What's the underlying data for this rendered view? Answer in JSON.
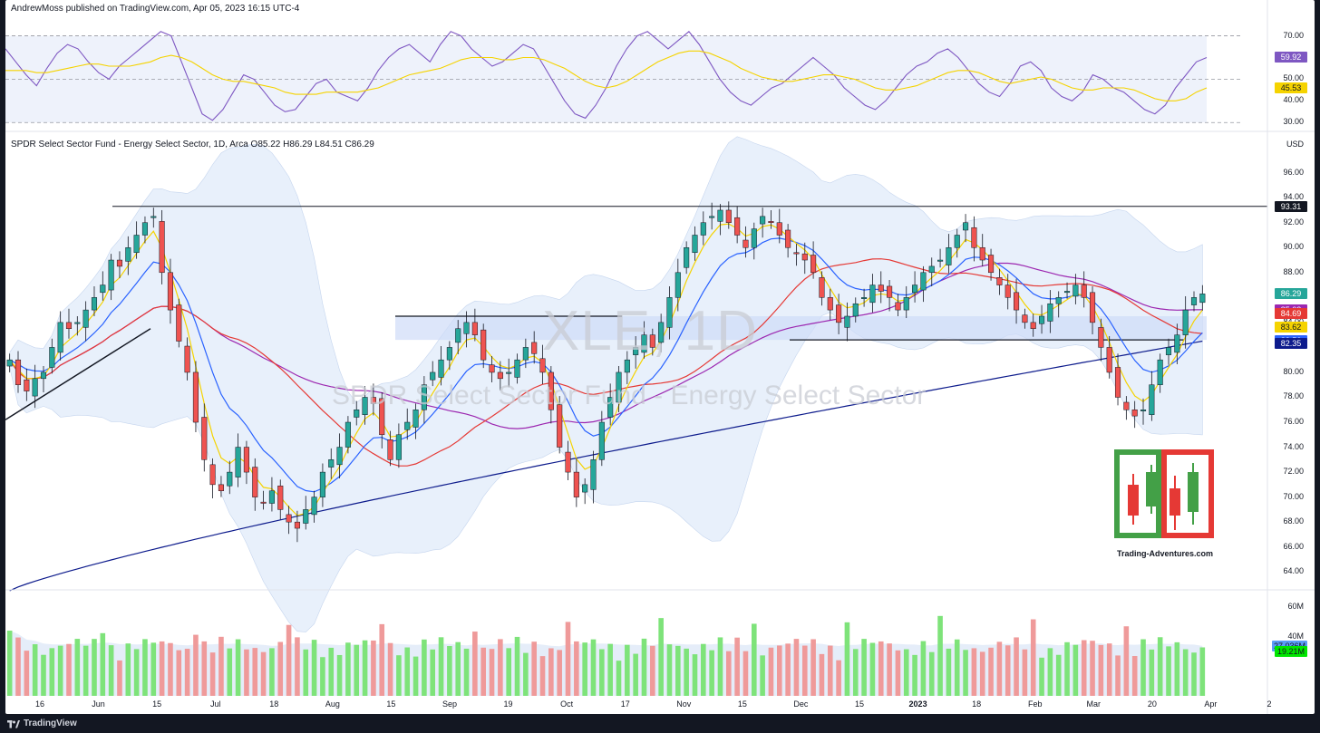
{
  "header": {
    "publish_line": "AndrewMoss published on TradingView.com, Apr 05, 2023 16:15 UTC-4",
    "symbol_line": "SPDR Select Sector Fund - Energy Select Sector, 1D, Arca  O85.22  H86.29  L84.51  C86.29",
    "currency": "USD"
  },
  "watermark": {
    "symbol": "XLE, 1D",
    "name": "SPDR Select Sector Fund - Energy Select Sector"
  },
  "brand": {
    "site": "Trading-Adventures.com"
  },
  "footer": {
    "platform": "TradingView"
  },
  "colors": {
    "up": "#26a69a",
    "down": "#ef5350",
    "up_volume": "#7ee37a",
    "down_volume": "#ef9a9a",
    "ma_yellow": "#f5d300",
    "ma_blue": "#2962ff",
    "ma_red": "#e53935",
    "ma_purple": "#9c27b0",
    "ma_navy": "#0d1b8c",
    "rsi": "#7e57c2",
    "rsi_ma": "#f5d300",
    "band_fill": "#e8f0fb",
    "zone_fill": "#cfdcf8"
  },
  "chart_data": [
    {
      "type": "line",
      "panel": "RSI",
      "y_ticks": [
        "70.00",
        "50.00",
        "40.00",
        "30.00"
      ],
      "ylim": [
        28,
        74
      ],
      "last_values": {
        "rsi": "59.92",
        "rsi_ma": "45.53"
      },
      "series": [
        {
          "values": [
            64,
            58,
            52,
            47,
            55,
            62,
            66,
            64,
            58,
            53,
            50,
            56,
            60,
            64,
            68,
            72,
            70,
            58,
            46,
            34,
            31,
            36,
            44,
            52,
            50,
            44,
            38,
            35,
            36,
            42,
            48,
            50,
            44,
            42,
            40,
            46,
            54,
            60,
            64,
            66,
            62,
            58,
            66,
            72,
            70,
            64,
            60,
            56,
            58,
            62,
            66,
            64,
            56,
            48,
            40,
            34,
            32,
            38,
            46,
            56,
            64,
            70,
            72,
            68,
            64,
            68,
            72,
            66,
            58,
            50,
            44,
            40,
            38,
            42,
            46,
            48,
            52,
            56,
            60,
            56,
            52,
            46,
            42,
            38,
            36,
            40,
            46,
            52,
            56,
            58,
            62,
            64,
            60,
            54,
            48,
            44,
            42,
            48,
            56,
            58,
            54,
            46,
            42,
            40,
            44,
            52,
            50,
            46,
            44,
            40,
            36,
            34,
            38,
            46,
            52,
            58,
            60
          ]
        },
        {
          "values": [
            54,
            54,
            54,
            53,
            53,
            54,
            55,
            56,
            57,
            57,
            56,
            56,
            56,
            57,
            58,
            60,
            61,
            60,
            58,
            55,
            52,
            50,
            49,
            49,
            48,
            47,
            46,
            44,
            43,
            43,
            43,
            44,
            44,
            44,
            44,
            45,
            46,
            48,
            50,
            52,
            53,
            54,
            55,
            57,
            59,
            60,
            60,
            60,
            59,
            59,
            60,
            60,
            59,
            57,
            55,
            52,
            49,
            47,
            46,
            47,
            49,
            52,
            55,
            58,
            60,
            62,
            63,
            63,
            62,
            60,
            58,
            55,
            53,
            51,
            50,
            49,
            49,
            50,
            51,
            52,
            52,
            51,
            50,
            48,
            46,
            45,
            45,
            46,
            47,
            49,
            51,
            53,
            54,
            54,
            53,
            51,
            49,
            48,
            49,
            50,
            51,
            50,
            48,
            46,
            45,
            45,
            46,
            46,
            46,
            45,
            43,
            41,
            40,
            40,
            41,
            44,
            46
          ]
        }
      ]
    },
    {
      "type": "candlestick",
      "panel": "price",
      "title": "SPDR Select Sector Fund - Energy Select Sector, 1D, Arca",
      "ylabel": "USD",
      "y_ticks": [
        "96.00",
        "94.00",
        "92.00",
        "90.00",
        "88.00",
        "86.00",
        "84.00",
        "82.00",
        "80.00",
        "78.00",
        "76.00",
        "74.00",
        "72.00",
        "70.00",
        "68.00",
        "66.00",
        "64.00"
      ],
      "ylim": [
        63,
        97.5
      ],
      "x_ticks": [
        "16",
        "Jun",
        "15",
        "Jul",
        "18",
        "Aug",
        "15",
        "Sep",
        "19",
        "Oct",
        "17",
        "Nov",
        "15",
        "Dec",
        "15",
        "2023",
        "18",
        "Feb",
        "Mar",
        "20",
        "Apr",
        "2"
      ],
      "resistance": 93.31,
      "zone": [
        82.6,
        84.5
      ],
      "last_labels": [
        {
          "value": "93.31",
          "color": "#131722"
        },
        {
          "value": "86.29",
          "color": "#26a69a"
        },
        {
          "value": "85.03",
          "color": "#9c27b0"
        },
        {
          "value": "84.69",
          "color": "#e53935"
        },
        {
          "value": "83.62",
          "color": "#f5d300"
        },
        {
          "value": "82.56",
          "color": "#2962ff"
        },
        {
          "value": "82.35",
          "color": "#0d1b8c"
        }
      ],
      "close": [
        81,
        79,
        78.5,
        79.5,
        80,
        82,
        84,
        83.5,
        84,
        85,
        86,
        87,
        89,
        88.5,
        90,
        91,
        92,
        92.5,
        88,
        85,
        82.5,
        80,
        76,
        73,
        71,
        70.5,
        72,
        74,
        72,
        70,
        69.5,
        70.5,
        69,
        68,
        67.5,
        69,
        70,
        72,
        73,
        74,
        76,
        77,
        78,
        77.5,
        75,
        73,
        75,
        76,
        77,
        79,
        80,
        81,
        82,
        83.5,
        84,
        83,
        81,
        80,
        79.5,
        80,
        81,
        82,
        81.5,
        80,
        77,
        74,
        72,
        70,
        71,
        73,
        76,
        78,
        80,
        81,
        82,
        83,
        82,
        84,
        86,
        88,
        90,
        91,
        92,
        92.5,
        93,
        92,
        91,
        90,
        91.5,
        92.5,
        92,
        91,
        90,
        89.5,
        89,
        88,
        86,
        85,
        84,
        84.5,
        85.5,
        86,
        87,
        86.5,
        86,
        85,
        86,
        87,
        88,
        88.5,
        89,
        90,
        91,
        92,
        90,
        89,
        88,
        87,
        86,
        85,
        84,
        83.5,
        84.5,
        85.5,
        86,
        86.5,
        87,
        86,
        84,
        82,
        80,
        78,
        77,
        76.5,
        77,
        79,
        81,
        82,
        83,
        85,
        86,
        86.29
      ]
    },
    {
      "type": "bar",
      "panel": "volume",
      "y_ticks": [
        "60M",
        "40M"
      ],
      "ylim": [
        0,
        66
      ],
      "last_values": {
        "volume_ma": "27.036M",
        "volume": "19.21M"
      }
    }
  ]
}
